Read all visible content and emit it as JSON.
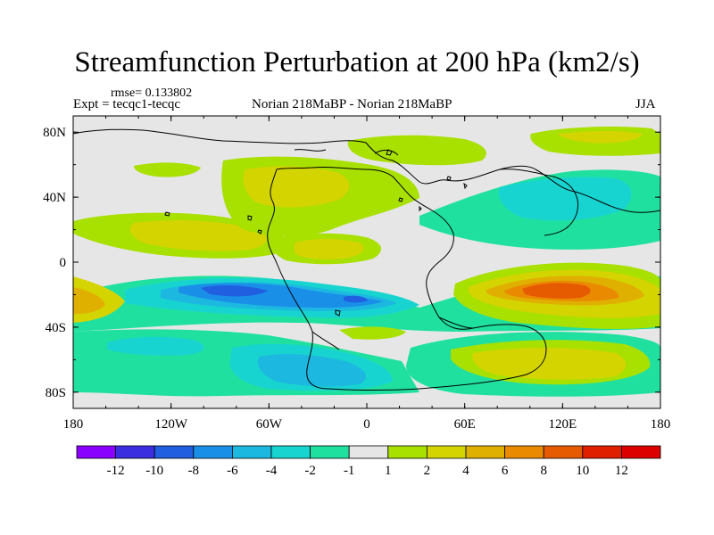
{
  "chart_data": {
    "type": "heatmap",
    "title": "Streamfunction Perturbation at 200 hPa (km2/s)",
    "annotations": {
      "rmse": "rmse= 0.133802",
      "expt": "Expt = tecqc1-tecqc",
      "center": "Norian 218MaBP - Norian 218MaBP",
      "season": "JJA"
    },
    "x_ticks": [
      {
        "value": -180,
        "label": "180"
      },
      {
        "value": -120,
        "label": "120W"
      },
      {
        "value": -60,
        "label": "60W"
      },
      {
        "value": 0,
        "label": "0"
      },
      {
        "value": 60,
        "label": "60E"
      },
      {
        "value": 120,
        "label": "120E"
      },
      {
        "value": 180,
        "label": "180"
      }
    ],
    "y_ticks": [
      {
        "value": 80,
        "label": "80N"
      },
      {
        "value": 40,
        "label": "40N"
      },
      {
        "value": 0,
        "label": "0"
      },
      {
        "value": -40,
        "label": "40S"
      },
      {
        "value": -80,
        "label": "80S"
      }
    ],
    "xlim": [
      -180,
      180
    ],
    "ylim": [
      -90,
      90
    ],
    "colorbar": {
      "labels": [
        "-12",
        "-10",
        "-8",
        "-6",
        "-4",
        "-2",
        "-1",
        "1",
        "2",
        "4",
        "6",
        "8",
        "10",
        "12"
      ],
      "colors": [
        "#8a00ff",
        "#3a2ee0",
        "#1f5fe0",
        "#1a8fe8",
        "#1cb8e0",
        "#18d4d0",
        "#20e0a0",
        "#e6e6e6",
        "#a8e000",
        "#d4d400",
        "#e0b000",
        "#ea8a00",
        "#e65a00",
        "#e01e00",
        "#dc0000"
      ]
    },
    "cells": [
      {
        "lon": -100,
        "lat": -18,
        "level": -8
      },
      {
        "lon": -20,
        "lat": -18,
        "level": -6
      },
      {
        "lon": -90,
        "lat": -18,
        "level": -4
      },
      {
        "lon": -40,
        "lat": -60,
        "level": -4
      },
      {
        "lon": 80,
        "lat": 40,
        "level": -2
      },
      {
        "lon": 115,
        "lat": -20,
        "level": 10
      },
      {
        "lon": 110,
        "lat": -20,
        "level": 6
      },
      {
        "lon": 95,
        "lat": -60,
        "level": 4
      },
      {
        "lon": -40,
        "lat": 40,
        "level": 4
      },
      {
        "lon": -150,
        "lat": 10,
        "level": 2
      },
      {
        "lon": -180,
        "lat": -25,
        "level": 4
      },
      {
        "lon": 20,
        "lat": 75,
        "level": 1
      }
    ]
  }
}
